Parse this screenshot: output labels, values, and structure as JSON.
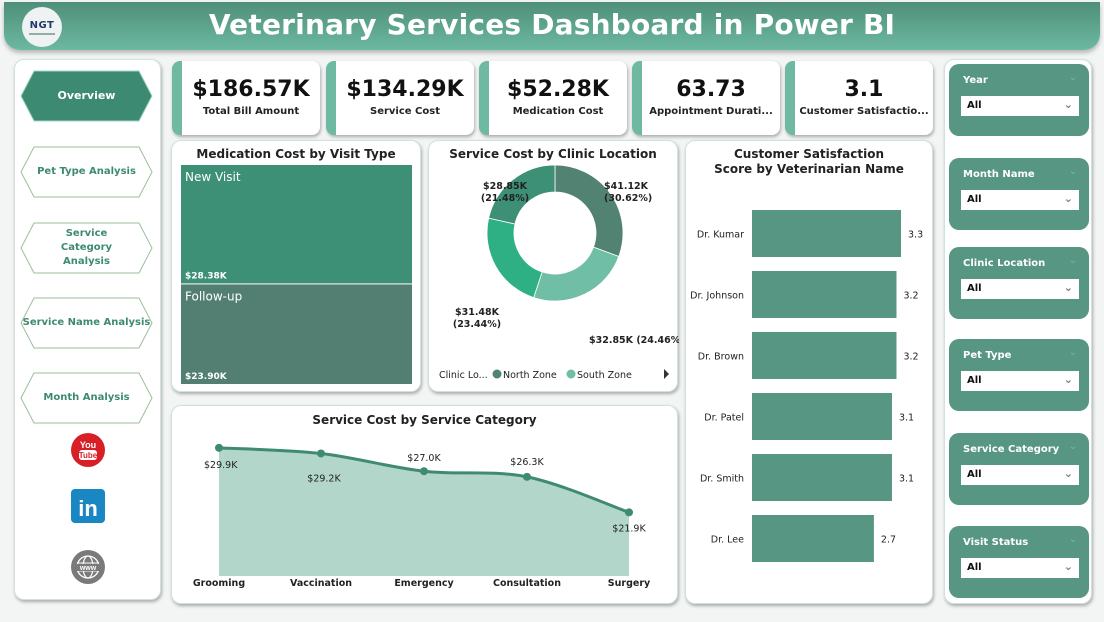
{
  "header": {
    "title": "Veterinary Services Dashboard in Power BI",
    "logo_text": "NGT"
  },
  "nav": {
    "items": [
      {
        "label": "Overview",
        "active": true
      },
      {
        "label": "Pet Type Analysis",
        "active": false
      },
      {
        "label": "Service Category Analysis",
        "active": false
      },
      {
        "label": "Service Name Analysis",
        "active": false
      },
      {
        "label": "Month Analysis",
        "active": false
      }
    ],
    "social": [
      {
        "icon": "youtube-icon",
        "label": "You Tube"
      },
      {
        "icon": "linkedin-icon",
        "label": "in"
      },
      {
        "icon": "website-globe-icon",
        "label": "www"
      }
    ]
  },
  "kpis": [
    {
      "value": "$186.57K",
      "label": "Total Bill Amount"
    },
    {
      "value": "$134.29K",
      "label": "Service Cost"
    },
    {
      "value": "$52.28K",
      "label": "Medication Cost"
    },
    {
      "value": "63.73",
      "label": "Appointment Durati..."
    },
    {
      "value": "3.1",
      "label": "Customer Satisfactio..."
    }
  ],
  "colors": {
    "accent": "#579682",
    "treemap_new": "#3d8f76",
    "treemap_follow": "#527f71",
    "area_fill": "#b2d6ca",
    "area_line": "#3f8a72",
    "bar": "#579682"
  },
  "chart_data": [
    {
      "type": "treemap",
      "title": "Medication Cost by Visit Type",
      "categories": [
        "New Visit",
        "Follow-up"
      ],
      "values": [
        28.38,
        23.9
      ],
      "labels": [
        "$28.38K",
        "$23.90K"
      ],
      "unit": "$K"
    },
    {
      "type": "pie",
      "subtype": "donut",
      "title": "Service Cost by Clinic Location",
      "slices": [
        {
          "value": 41.12,
          "label": "$41.12K",
          "pct": "(30.62%)",
          "color": "#518272"
        },
        {
          "value": 32.85,
          "label": "$32.85K",
          "pct": "(24.46%)",
          "color": "#70bea5"
        },
        {
          "value": 31.48,
          "label": "$31.48K",
          "pct": "(23.44%)",
          "color": "#2fb084"
        },
        {
          "value": 28.85,
          "label": "$28.85K",
          "pct": "(21.48%)",
          "color": "#3d8f76"
        }
      ],
      "legend": {
        "title": "Clinic Lo...",
        "entries": [
          {
            "name": "North Zone",
            "color": "#518272"
          },
          {
            "name": "South Zone",
            "color": "#70bea5"
          }
        ],
        "position": "bottom"
      }
    },
    {
      "type": "bar",
      "orientation": "horizontal",
      "title": "Customer Satisfaction Score by Veterinarian Name",
      "categories": [
        "Dr. Kumar",
        "Dr. Johnson",
        "Dr. Brown",
        "Dr. Patel",
        "Dr. Smith",
        "Dr. Lee"
      ],
      "values": [
        3.3,
        3.2,
        3.2,
        3.1,
        3.1,
        2.7
      ],
      "xlim": [
        0,
        3.3
      ]
    },
    {
      "type": "area",
      "title": "Service Cost by Service Category",
      "categories": [
        "Grooming",
        "Vaccination",
        "Emergency",
        "Consultation",
        "Surgery"
      ],
      "values": [
        29.9,
        29.2,
        27.0,
        26.3,
        21.9
      ],
      "labels": [
        "$29.9K",
        "$29.2K",
        "$27.0K",
        "$26.3K",
        "$21.9K"
      ],
      "ylim": [
        14,
        30.5
      ]
    }
  ],
  "slicers": [
    {
      "label": "Year",
      "value": "All"
    },
    {
      "label": "Month Name",
      "value": "All"
    },
    {
      "label": "Clinic Location",
      "value": "All"
    },
    {
      "label": "Pet Type",
      "value": "All"
    },
    {
      "label": "Service Category",
      "value": "All"
    },
    {
      "label": "Visit Status",
      "value": "All"
    }
  ]
}
